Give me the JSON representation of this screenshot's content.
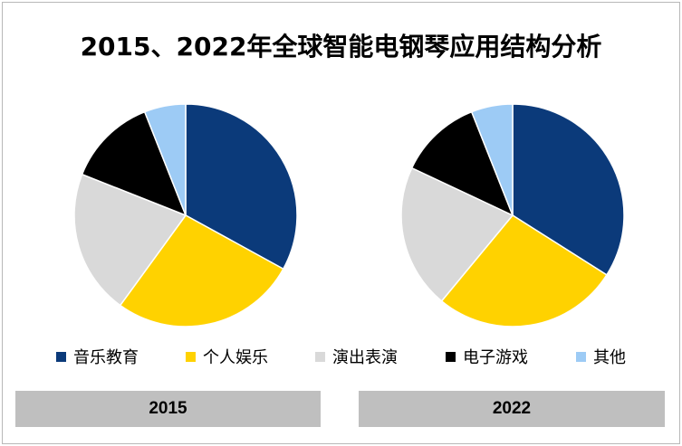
{
  "title": "2015、2022年全球智能电钢琴应用结构分析",
  "chart_data": [
    {
      "type": "pie",
      "year": "2015",
      "categories": [
        "音乐教育",
        "个人娱乐",
        "演出表演",
        "电子游戏",
        "其他"
      ],
      "values": [
        33,
        27,
        21,
        13,
        6
      ],
      "colors": [
        "#0b3a7a",
        "#ffd200",
        "#d9d9d9",
        "#000000",
        "#9dcbf5"
      ]
    },
    {
      "type": "pie",
      "year": "2022",
      "categories": [
        "音乐教育",
        "个人娱乐",
        "演出表演",
        "电子游戏",
        "其他"
      ],
      "values": [
        34,
        27,
        21,
        12,
        6
      ],
      "colors": [
        "#0b3a7a",
        "#ffd200",
        "#d9d9d9",
        "#000000",
        "#9dcbf5"
      ]
    }
  ],
  "legend": [
    {
      "label": "音乐教育",
      "color": "#0b3a7a"
    },
    {
      "label": "个人娱乐",
      "color": "#ffd200"
    },
    {
      "label": "演出表演",
      "color": "#d9d9d9"
    },
    {
      "label": "电子游戏",
      "color": "#000000"
    },
    {
      "label": "其他",
      "color": "#9dcbf5"
    }
  ],
  "year_labels": [
    "2015",
    "2022"
  ]
}
